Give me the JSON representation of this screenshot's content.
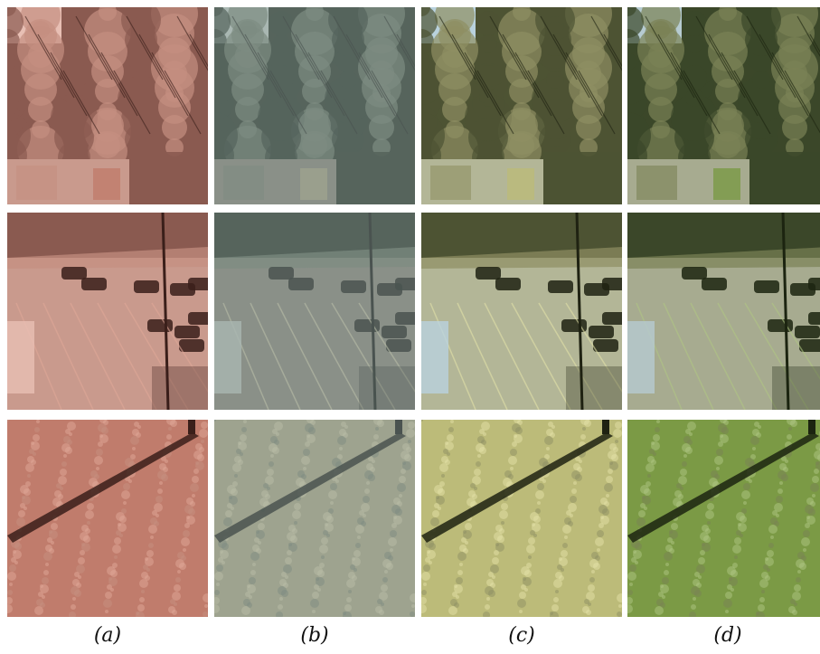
{
  "figure": {
    "columns": [
      {
        "label": "(a)",
        "tone": {
          "sky": "#e8bfb4",
          "foliage": "#8a5a50",
          "foliage_light": "#c58f80",
          "ground": "#c99a8d",
          "grass": "#c07c6c",
          "grass_light": "#e0a898",
          "shadow": "#3a1f1a"
        }
      },
      {
        "label": "(b)",
        "tone": {
          "sky": "#a9b7b2",
          "foliage": "#56645c",
          "foliage_light": "#7e8c82",
          "ground": "#8a9088",
          "grass": "#9ea38f",
          "grass_light": "#b9bea8",
          "shadow": "#4a5350"
        }
      },
      {
        "label": "(c)",
        "tone": {
          "sky": "#b9d2de",
          "foliage": "#4d5333",
          "foliage_light": "#8e8f63",
          "ground": "#b3b697",
          "grass": "#bcbb79",
          "grass_light": "#e3e2a8",
          "shadow": "#1f2212"
        }
      },
      {
        "label": "(d)",
        "tone": {
          "sky": "#b6cbd1",
          "foliage": "#3b4729",
          "foliage_light": "#7a8255",
          "ground": "#a7ab90",
          "grass": "#7b9a45",
          "grass_light": "#b0c683",
          "shadow": "#1c2410"
        }
      }
    ],
    "rows": [
      {
        "scene": "trees-and-mural"
      },
      {
        "scene": "parking-lot"
      },
      {
        "scene": "grass-with-shadow"
      }
    ]
  }
}
